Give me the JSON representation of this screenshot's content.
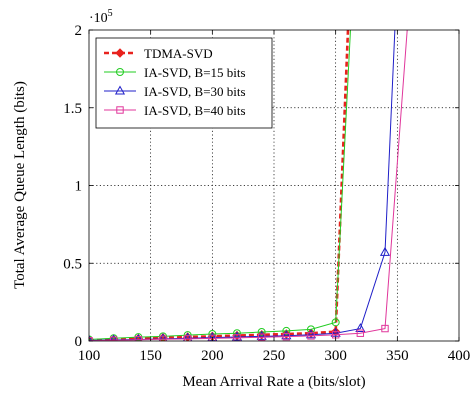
{
  "chart_data": {
    "type": "line",
    "title": "",
    "xlabel": "Mean Arrival Rate a (bits/slot)",
    "ylabel": "Total Average Queue Length (bits)",
    "y_multiplier_label": "·10^5",
    "xlim": [
      100,
      400
    ],
    "ylim": [
      0,
      200000
    ],
    "x_ticks": [
      100,
      150,
      200,
      250,
      300,
      350,
      400
    ],
    "x_tick_labels": [
      "100",
      "150",
      "200",
      "250",
      "300",
      "350",
      "400"
    ],
    "y_ticks": [
      0,
      50000,
      100000,
      150000,
      200000
    ],
    "y_tick_labels": [
      "0",
      "0.5",
      "1",
      "1.5",
      "2"
    ],
    "grid": true,
    "legend_position": "top-left",
    "series": [
      {
        "name": "TDMA-SVD",
        "color": "#e8221e",
        "marker": "diamond",
        "dashed": true,
        "x": [
          100,
          120,
          140,
          160,
          180,
          200,
          220,
          240,
          260,
          280,
          300,
          310
        ],
        "y": [
          500,
          1000,
          1500,
          2000,
          2500,
          3000,
          3500,
          4000,
          4500,
          5000,
          6000,
          200000
        ]
      },
      {
        "name": "IA-SVD, B=15 bits",
        "color": "#22cc22",
        "marker": "circle",
        "dashed": false,
        "x": [
          100,
          120,
          140,
          160,
          180,
          200,
          220,
          240,
          260,
          280,
          300,
          312
        ],
        "y": [
          1000,
          1800,
          2500,
          3000,
          3800,
          4500,
          5000,
          5800,
          6500,
          7500,
          12000,
          200000
        ]
      },
      {
        "name": "IA-SVD, B=30 bits",
        "color": "#1f1fc8",
        "marker": "triangle",
        "dashed": false,
        "x": [
          100,
          120,
          140,
          160,
          180,
          200,
          220,
          240,
          260,
          280,
          300,
          320,
          340,
          348
        ],
        "y": [
          300,
          700,
          1000,
          1400,
          1800,
          2200,
          2600,
          3000,
          3400,
          4000,
          5000,
          8000,
          57000,
          200000
        ]
      },
      {
        "name": "IA-SVD, B=40 bits",
        "color": "#e0369b",
        "marker": "square",
        "dashed": false,
        "x": [
          100,
          120,
          140,
          160,
          180,
          200,
          220,
          240,
          260,
          280,
          300,
          320,
          340,
          358
        ],
        "y": [
          200,
          500,
          800,
          1100,
          1400,
          1700,
          2000,
          2400,
          2800,
          3300,
          4000,
          5000,
          8000,
          200000
        ]
      }
    ]
  }
}
